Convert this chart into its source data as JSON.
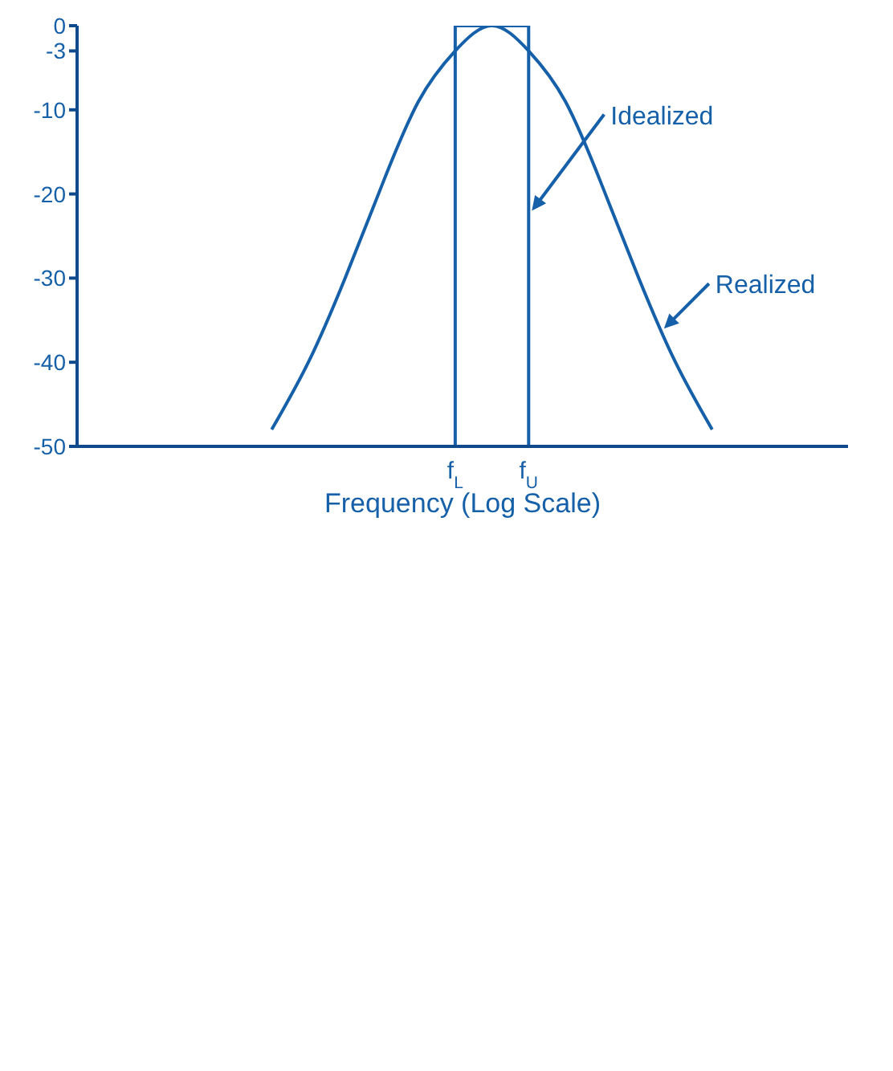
{
  "chart_data": {
    "type": "line",
    "xlabel": "Frequency (Log Scale)",
    "categories": [
      null,
      null,
      null,
      null,
      null,
      null,
      null,
      null,
      null,
      null,
      "f$_{L}$",
      null,
      "f$_{U}$",
      null,
      null,
      null,
      null,
      null,
      null,
      null,
      null
    ],
    "series": [
      {
        "color": "#1560a8",
        "values": [
          null,
          null,
          null,
          null,
          null,
          -48,
          -40,
          -30,
          -19,
          -9,
          -3,
          0,
          -3,
          -9,
          -19,
          -30,
          -40,
          -48,
          null,
          null,
          null
        ]
      },
      {
        "color": "#1560a8",
        "x": [
          "f$_{L}$",
          "f$_{L}$",
          "f$_{U}$",
          "f$_{U}$"
        ],
        "values": [
          -50,
          0,
          0,
          -50
        ]
      }
    ],
    "annotations": [
      {
        "text": "Idealized",
        "x": "f$_{U}$",
        "y": -22
      },
      "Realized"
    ],
    "ylim": [
      -50,
      0
    ],
    "yticks": [
      0,
      -3,
      -10,
      -20,
      -30,
      -40,
      -50
    ],
    "marker": "none",
    "line_style": "solid"
  }
}
